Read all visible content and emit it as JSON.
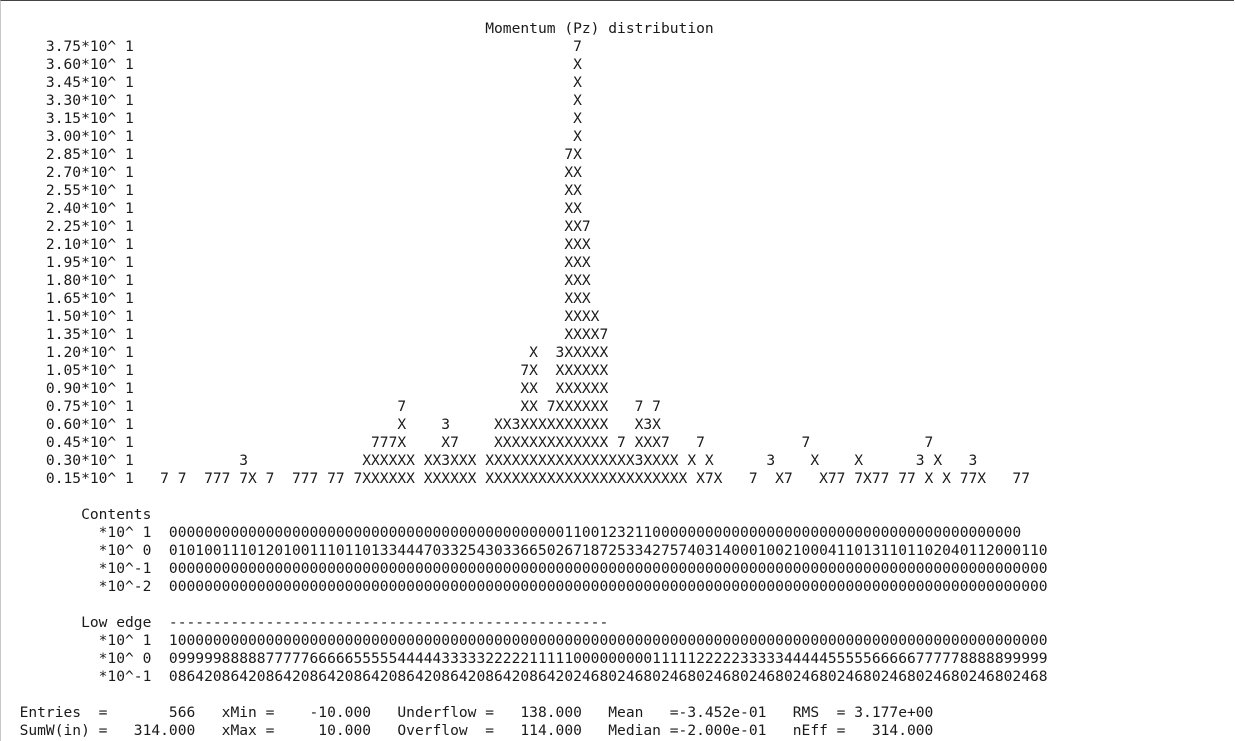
{
  "histogram": {
    "title": "                                                       Momentum (Pz) distribution",
    "plot_rows": [
      "     3.75*10^ 1                                                  7",
      "     3.60*10^ 1                                                  X",
      "     3.45*10^ 1                                                  X",
      "     3.30*10^ 1                                                  X",
      "     3.15*10^ 1                                                  X",
      "     3.00*10^ 1                                                  X",
      "     2.85*10^ 1                                                 7X",
      "     2.70*10^ 1                                                 XX",
      "     2.55*10^ 1                                                 XX",
      "     2.40*10^ 1                                                 XX",
      "     2.25*10^ 1                                                 XX7",
      "     2.10*10^ 1                                                 XXX",
      "     1.95*10^ 1                                                 XXX",
      "     1.80*10^ 1                                                 XXX",
      "     1.65*10^ 1                                                 XXX",
      "     1.50*10^ 1                                                 XXXX",
      "     1.35*10^ 1                                                 XXXX7",
      "     1.20*10^ 1                                             X  3XXXXX",
      "     1.05*10^ 1                                            7X  XXXXXX",
      "     0.90*10^ 1                                            XX  XXXXXX",
      "     0.75*10^ 1                              7             XX 7XXXXXX   7 7",
      "     0.60*10^ 1                              X    3     XX3XXXXXXXXXX   X3X",
      "     0.45*10^ 1                           777X    X7    XXXXXXXXXXXXX 7 XXX7   7           7             7",
      "     0.30*10^ 1            3             XXXXXX XX3XXX XXXXXXXXXXXXXXXXX3XXXX X X      3    X    X      3 X   3",
      "     0.15*10^ 1   7 7  777 7X 7  777 77 7XXXXXX XXXXXX XXXXXXXXXXXXXXXXXXXXXXX X7X   7  X7   X77 7X77 77 X X 77X   77"
    ],
    "blank_1": " ",
    "contents_label": "         Contents",
    "contents_rows": [
      "           *10^ 1  0000000000000000000000000000000000000000000001100123211000000000000000000000000000000000000000000",
      "           *10^ 0  0101001110120100111011013344470332543033665026718725334275740314000100210004110131101102040112000110",
      "           *10^-1  0000000000000000000000000000000000000000000000000000000000000000000000000000000000000000000000000000",
      "           *10^-2  0000000000000000000000000000000000000000000000000000000000000000000000000000000000000000000000000000"
    ],
    "blank_2": " ",
    "low_edge_label": "         Low edge  --------------------------------------------------",
    "low_edge_rows": [
      "           *10^ 1  1000000000000000000000000000000000000000000000000000000000000000000000000000000000000000000000000000",
      "           *10^ 0  0999998888877777666665555544444333332222211111000000000111112222233333444445555566666777778888899999",
      "           *10^-1  0864208642086420864208642086420864208642086420246802468024680246802468024680246802468024680246802468"
    ],
    "blank_3": " ",
    "stats_rows": [
      "  Entries  =       566   xMin =    -10.000   Underflow =   138.000   Mean   =-3.452e-01   RMS  = 3.177e+00",
      "  SumW(in) =   314.000   xMax =     10.000   Overflow  =   114.000   Median =-2.000e-01   nEff =   314.000"
    ]
  }
}
